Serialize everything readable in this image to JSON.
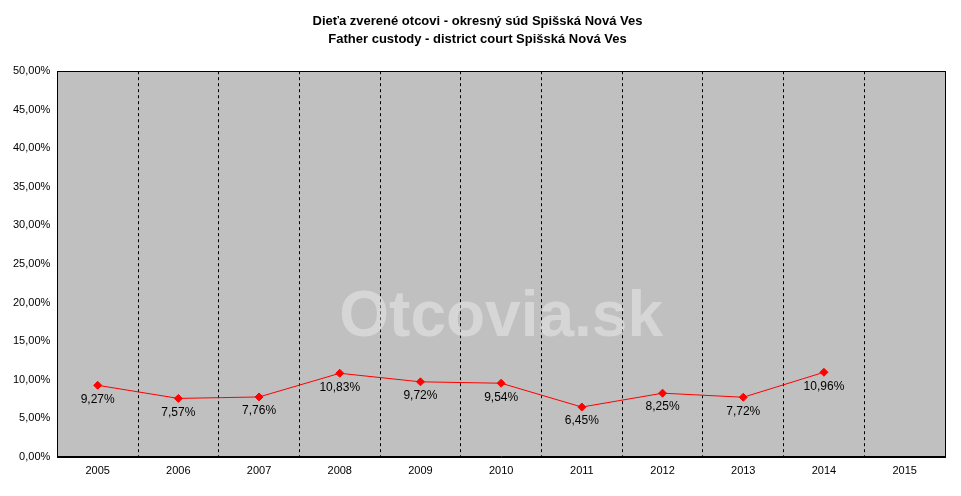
{
  "chart_data": {
    "type": "line",
    "title": "Dieťa zverené otcovi - okresný súd Spišská Nová Ves",
    "subtitle": "Father custody - district court Spišská Nová Ves",
    "annotation": "Otcovia.sk",
    "categories": [
      "2005",
      "2006",
      "2007",
      "2008",
      "2009",
      "2010",
      "2011",
      "2012",
      "2013",
      "2014",
      "2015"
    ],
    "values": [
      9.27,
      7.57,
      7.76,
      10.83,
      9.72,
      9.54,
      6.45,
      8.25,
      7.72,
      10.96,
      null
    ],
    "value_labels": [
      "9,27%",
      "7,57%",
      "7,76%",
      "10,83%",
      "9,72%",
      "9,54%",
      "6,45%",
      "8,25%",
      "7,72%",
      "10,96%",
      null
    ],
    "data_labels": true,
    "color": "#ff0000",
    "marker": "diamond",
    "line_style": "solid",
    "grid": true,
    "ylim": [
      0,
      50
    ],
    "yticks": [
      {
        "value": 0,
        "label": "0,00%"
      },
      {
        "value": 5,
        "label": "5,00%"
      },
      {
        "value": 10,
        "label": "10,00%"
      },
      {
        "value": 15,
        "label": "15,00%"
      },
      {
        "value": 20,
        "label": "20,00%"
      },
      {
        "value": 25,
        "label": "25,00%"
      },
      {
        "value": 30,
        "label": "30,00%"
      },
      {
        "value": 35,
        "label": "35,00%"
      },
      {
        "value": 40,
        "label": "40,00%"
      },
      {
        "value": 45,
        "label": "45,00%"
      },
      {
        "value": 50,
        "label": "50,00%"
      }
    ]
  }
}
